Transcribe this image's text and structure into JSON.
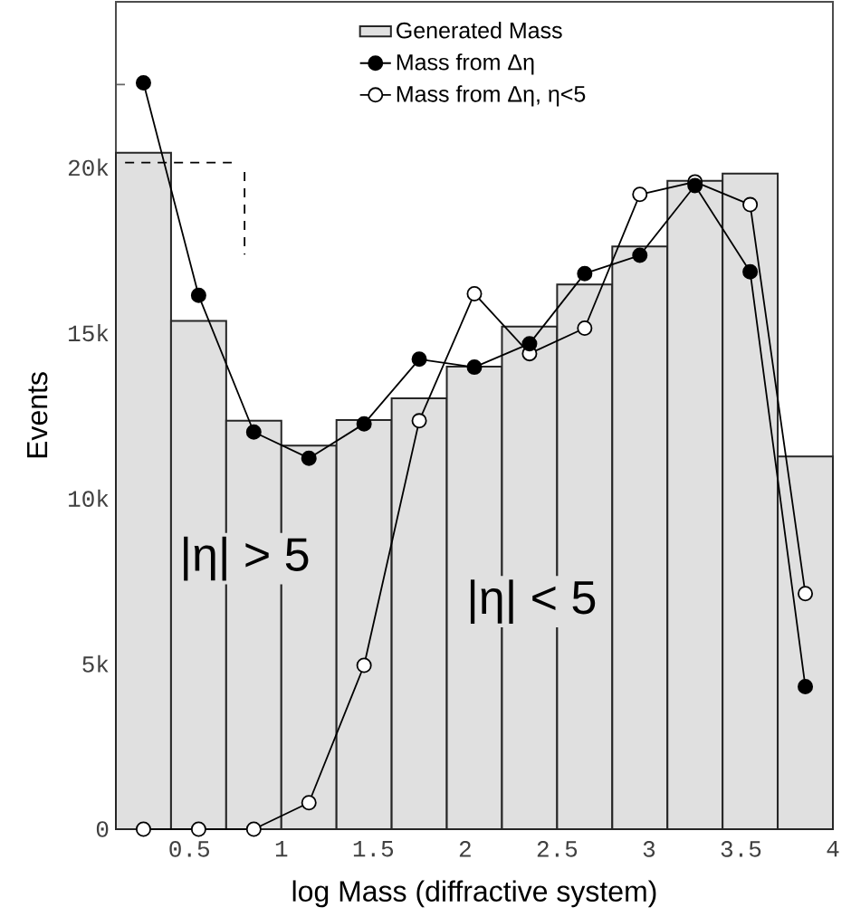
{
  "chart_data": {
    "type": "histogram",
    "xlabel": "log Mass (diffractive system)",
    "ylabel": "Events",
    "xlim": [
      0.1,
      4.0
    ],
    "ylim": [
      0,
      25000
    ],
    "xticks": [
      {
        "value": 0.2,
        "label": null
      },
      {
        "value": 0.3,
        "label": null
      },
      {
        "value": 0.4,
        "label": null
      },
      {
        "value": 0.5,
        "label": "0.5"
      },
      {
        "value": 0.6,
        "label": null
      },
      {
        "value": 0.7,
        "label": null
      },
      {
        "value": 0.8,
        "label": null
      },
      {
        "value": 0.9,
        "label": null
      },
      {
        "value": 1.0,
        "label": "1"
      },
      {
        "value": 1.1,
        "label": null
      },
      {
        "value": 1.2,
        "label": null
      },
      {
        "value": 1.3,
        "label": null
      },
      {
        "value": 1.4,
        "label": null
      },
      {
        "value": 1.5,
        "label": "1.5"
      },
      {
        "value": 1.6,
        "label": null
      },
      {
        "value": 1.7,
        "label": null
      },
      {
        "value": 1.8,
        "label": null
      },
      {
        "value": 1.9,
        "label": null
      },
      {
        "value": 2.0,
        "label": "2"
      },
      {
        "value": 2.1,
        "label": null
      },
      {
        "value": 2.2,
        "label": null
      },
      {
        "value": 2.3,
        "label": null
      },
      {
        "value": 2.4,
        "label": null
      },
      {
        "value": 2.5,
        "label": "2.5"
      },
      {
        "value": 2.6,
        "label": null
      },
      {
        "value": 2.7,
        "label": null
      },
      {
        "value": 2.8,
        "label": null
      },
      {
        "value": 2.9,
        "label": null
      },
      {
        "value": 3.0,
        "label": "3"
      },
      {
        "value": 3.1,
        "label": null
      },
      {
        "value": 3.2,
        "label": null
      },
      {
        "value": 3.3,
        "label": null
      },
      {
        "value": 3.4,
        "label": null
      },
      {
        "value": 3.5,
        "label": "3.5"
      },
      {
        "value": 3.6,
        "label": null
      },
      {
        "value": 3.7,
        "label": null
      },
      {
        "value": 3.8,
        "label": null
      },
      {
        "value": 3.9,
        "label": null
      },
      {
        "value": 4.0,
        "label": "4"
      }
    ],
    "yticks": [
      {
        "value": 0,
        "label": "0"
      },
      {
        "value": 2500,
        "label": null
      },
      {
        "value": 5000,
        "label": "5k"
      },
      {
        "value": 7500,
        "label": null
      },
      {
        "value": 10000,
        "label": "10k"
      },
      {
        "value": 12500,
        "label": null
      },
      {
        "value": 15000,
        "label": "15k"
      },
      {
        "value": 17500,
        "label": null
      },
      {
        "value": 20000,
        "label": "20k"
      },
      {
        "value": 22500,
        "label": null
      }
    ],
    "legend": "top",
    "grid": false,
    "annotations": [
      "|η| > 5",
      "|η| < 5"
    ],
    "series": [
      {
        "name": "Generated Mass",
        "color": "#e0e0e0",
        "bins": [
          0.1,
          0.4,
          0.7,
          1.0,
          1.3,
          1.6,
          1.9,
          2.2,
          2.5,
          2.8,
          3.1,
          3.4,
          3.7,
          4.0
        ],
        "values": [
          20440,
          15360,
          12340,
          11590,
          12360,
          13020,
          13980,
          15190,
          16460,
          17610,
          19590,
          19810,
          11260
        ]
      },
      {
        "type": "line",
        "name": "Mass from Δη",
        "color": "#000000",
        "marker": "circle",
        "x": [
          0.25,
          0.55,
          0.85,
          1.15,
          1.45,
          1.75,
          2.05,
          2.35,
          2.65,
          2.95,
          3.25,
          3.55,
          3.85
        ],
        "values": [
          22550,
          16130,
          12000,
          11210,
          12250,
          14200,
          13960,
          14670,
          16790,
          17340,
          19450,
          16840,
          4310
        ]
      },
      {
        "type": "line",
        "name": "Mass from Δη, η<5",
        "color": "#ffffff",
        "marker": "circle",
        "x": [
          0.25,
          0.55,
          0.85,
          1.15,
          1.45,
          1.75,
          2.05,
          2.35,
          2.65,
          2.95,
          3.25,
          3.55,
          3.85
        ],
        "values": [
          0,
          0,
          0,
          800,
          4950,
          12340,
          16180,
          14370,
          15140,
          19180,
          19560,
          18870,
          7120
        ]
      },
      {
        "type": "line",
        "color": "#000000",
        "marker": "none",
        "line_style": "dashed",
        "x": [
          0.15,
          0.73,
          0.77,
          0.8,
          0.8
        ],
        "values": [
          20140,
          20140,
          null,
          19860,
          17360
        ]
      }
    ]
  }
}
